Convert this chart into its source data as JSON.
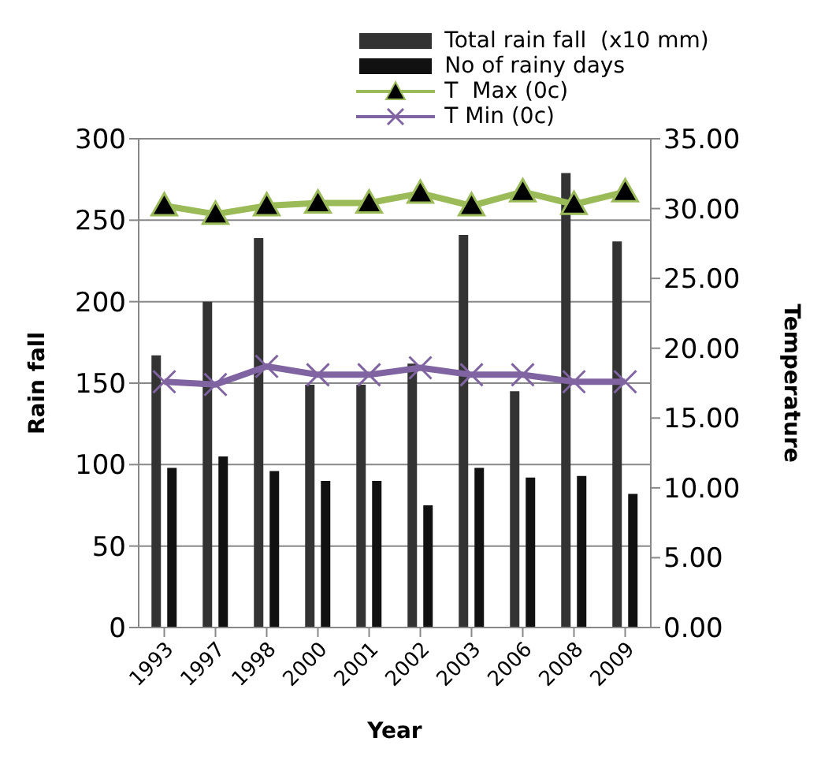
{
  "chart_data": {
    "type": "bar",
    "xlabel": "Year",
    "ylabel": "Rain fall",
    "y2label": "Temperature",
    "categories": [
      "1993",
      "1997",
      "1998",
      "2000",
      "2001",
      "2002",
      "2003",
      "2006",
      "2008",
      "2009"
    ],
    "series": [
      {
        "name": "Total rain fall  (x10 mm)",
        "color": "#333333",
        "values": [
          167,
          200,
          239,
          149,
          149,
          162,
          241,
          145,
          279,
          237
        ]
      },
      {
        "name": "No of rainy days",
        "color": "#111111",
        "values": [
          98,
          105,
          96,
          90,
          90,
          75,
          98,
          92,
          93,
          82
        ]
      },
      {
        "name": "T  Max (0c)",
        "type": "line",
        "axis": "y2",
        "marker": "triangle",
        "color": "#9bbb59",
        "values": [
          30.2,
          29.6,
          30.2,
          30.4,
          30.4,
          31.1,
          30.2,
          31.2,
          30.3,
          31.2
        ]
      },
      {
        "name": "T Min (0c)",
        "type": "line",
        "axis": "y2",
        "marker": "cross",
        "color": "#8064a2",
        "values": [
          17.6,
          17.4,
          18.7,
          18.1,
          18.1,
          18.6,
          18.1,
          18.1,
          17.6,
          17.6
        ]
      }
    ],
    "ylim": [
      0,
      300
    ],
    "yticks": [
      0,
      50,
      100,
      150,
      200,
      250,
      300
    ],
    "y2lim": [
      0,
      35
    ],
    "y2ticks": [
      {
        "value": 0,
        "label": "0.00"
      },
      {
        "value": 5,
        "label": "5.00"
      },
      {
        "value": 10,
        "label": "10.00"
      },
      {
        "value": 15,
        "label": "15.00"
      },
      {
        "value": 20,
        "label": "20.00"
      },
      {
        "value": 25,
        "label": "25.00"
      },
      {
        "value": 30,
        "label": "30.00"
      },
      {
        "value": 35,
        "label": "35.00"
      }
    ],
    "grid": "y",
    "legend": "top"
  }
}
